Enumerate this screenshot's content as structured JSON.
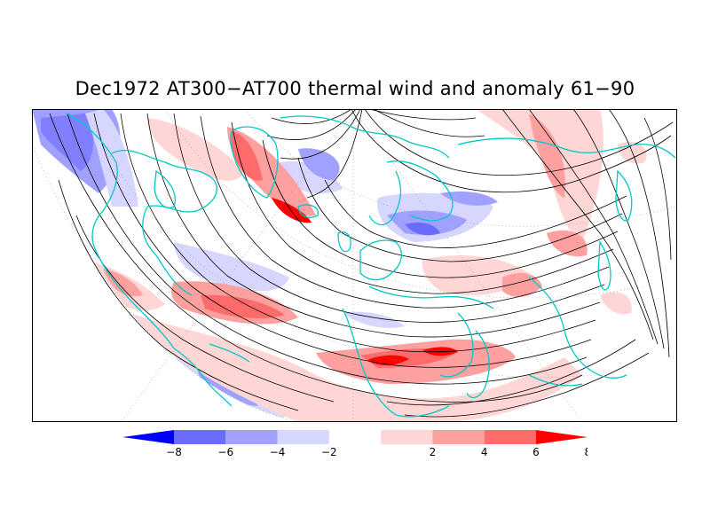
{
  "title": "Dec1972 AT300−AT700 thermal wind and anomaly 61−90",
  "colorbar": {
    "labels": [
      "−8",
      "−6",
      "−4",
      "−2",
      "2",
      "4",
      "6",
      "8"
    ],
    "colors": [
      "#0000ff",
      "#6b6bff",
      "#a0a0ff",
      "#d6d6ff",
      "#ffffff",
      "#ffd6d6",
      "#ffa0a0",
      "#ff6b6b",
      "#ff0000"
    ]
  },
  "map": {
    "coastline_color": "#00c8c8",
    "streamline_color": "#000000",
    "frame_color": "#000000"
  }
}
